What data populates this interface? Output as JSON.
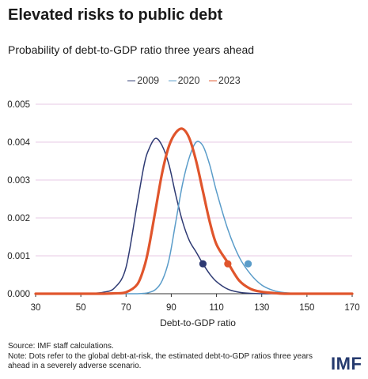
{
  "header": {
    "title": "Elevated risks to public debt",
    "subtitle": "Probability of debt-to-GDP ratio three years ahead"
  },
  "footer": {
    "source": "Source: IMF staff calculations.",
    "note": "Note: Dots refer to the global debt-at-risk, the estimated debt-to-GDP ratios three years ahead in a severely adverse scenario.",
    "brand": "IMF"
  },
  "colors": {
    "2009": "#2e3a73",
    "2020": "#5a9cc9",
    "2023": "#e0552c",
    "grid": "#e7c9e6"
  },
  "chart_data": {
    "type": "line",
    "title": "Probability of debt-to-GDP ratio three years ahead",
    "xlabel": "Debt-to-GDP ratio",
    "ylabel": "",
    "xlim": [
      30,
      170
    ],
    "ylim": [
      0,
      0.005
    ],
    "xticks": [
      "30",
      "50",
      "70",
      "90",
      "110",
      "130",
      "150",
      "170"
    ],
    "yticks": [
      "0.000",
      "0.001",
      "0.002",
      "0.003",
      "0.004",
      "0.005"
    ],
    "grid": "horizontal",
    "legend": "top-center",
    "x": [
      30,
      40,
      50,
      55,
      60,
      65,
      70,
      75,
      78,
      80,
      83,
      86,
      89,
      92,
      95,
      98,
      101,
      104,
      107,
      110,
      115,
      120,
      125,
      130,
      135,
      140,
      150,
      160,
      170
    ],
    "series": [
      {
        "name": "2009",
        "values": [
          0,
          0,
          0,
          1e-05,
          4e-05,
          0.00016,
          0.0007,
          0.0024,
          0.0034,
          0.0038,
          0.0041,
          0.0039,
          0.0034,
          0.0026,
          0.0019,
          0.0014,
          0.0011,
          0.00079,
          0.00052,
          0.00032,
          0.00012,
          4e-05,
          1e-05,
          0,
          0,
          0,
          0,
          0,
          0
        ],
        "marker": {
          "x": 104,
          "y": 0.00079
        }
      },
      {
        "name": "2020",
        "values": [
          0,
          0,
          0,
          0,
          0,
          0,
          0,
          0,
          1e-05,
          3e-05,
          0.00011,
          0.00035,
          0.0009,
          0.0019,
          0.0029,
          0.0036,
          0.004,
          0.0039,
          0.0034,
          0.0027,
          0.0017,
          0.00097,
          0.00052,
          0.00023,
          9e-05,
          3e-05,
          0,
          0,
          0
        ],
        "marker": {
          "x": 124,
          "y": 0.00079
        }
      },
      {
        "name": "2023",
        "values": [
          0,
          0,
          0,
          0,
          0,
          1e-05,
          4e-05,
          0.00025,
          0.0007,
          0.0012,
          0.0022,
          0.0032,
          0.0039,
          0.00425,
          0.00435,
          0.0041,
          0.0035,
          0.0027,
          0.0019,
          0.0013,
          0.00082,
          0.00035,
          0.00013,
          5e-05,
          2e-05,
          0,
          0,
          0,
          0
        ],
        "marker": {
          "x": 115,
          "y": 0.00079
        }
      }
    ]
  }
}
